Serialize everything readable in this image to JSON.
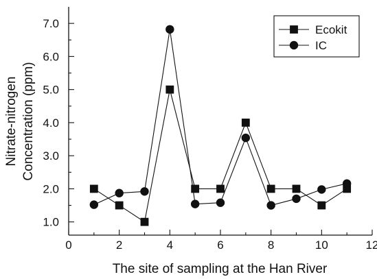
{
  "chart_data": {
    "type": "line",
    "xlabel": "The site of sampling at the Han River",
    "ylabel_lines": [
      "Nitrate-nitrogen",
      "Concentration (ppm)"
    ],
    "xlim": [
      0,
      12
    ],
    "ylim": [
      0.6,
      7.5
    ],
    "xticks": [
      "0",
      "2",
      "4",
      "6",
      "8",
      "10",
      "12"
    ],
    "yticks": [
      "1.0",
      "2.0",
      "3.0",
      "4.0",
      "5.0",
      "6.0",
      "7.0"
    ],
    "legend_position": "top-right",
    "series": [
      {
        "name": "Ecokit",
        "marker": "square",
        "x": [
          1,
          2,
          3,
          4,
          5,
          6,
          7,
          8,
          9,
          10,
          11
        ],
        "values": [
          2.0,
          1.5,
          1.0,
          5.0,
          2.0,
          2.0,
          4.0,
          2.0,
          2.0,
          1.5,
          2.0
        ]
      },
      {
        "name": "IC",
        "marker": "circle",
        "x": [
          1,
          2,
          3,
          4,
          5,
          6,
          7,
          8,
          9,
          10,
          11
        ],
        "values": [
          1.52,
          1.87,
          1.92,
          6.82,
          1.54,
          1.58,
          3.54,
          1.5,
          1.7,
          1.98,
          2.16
        ]
      }
    ]
  }
}
